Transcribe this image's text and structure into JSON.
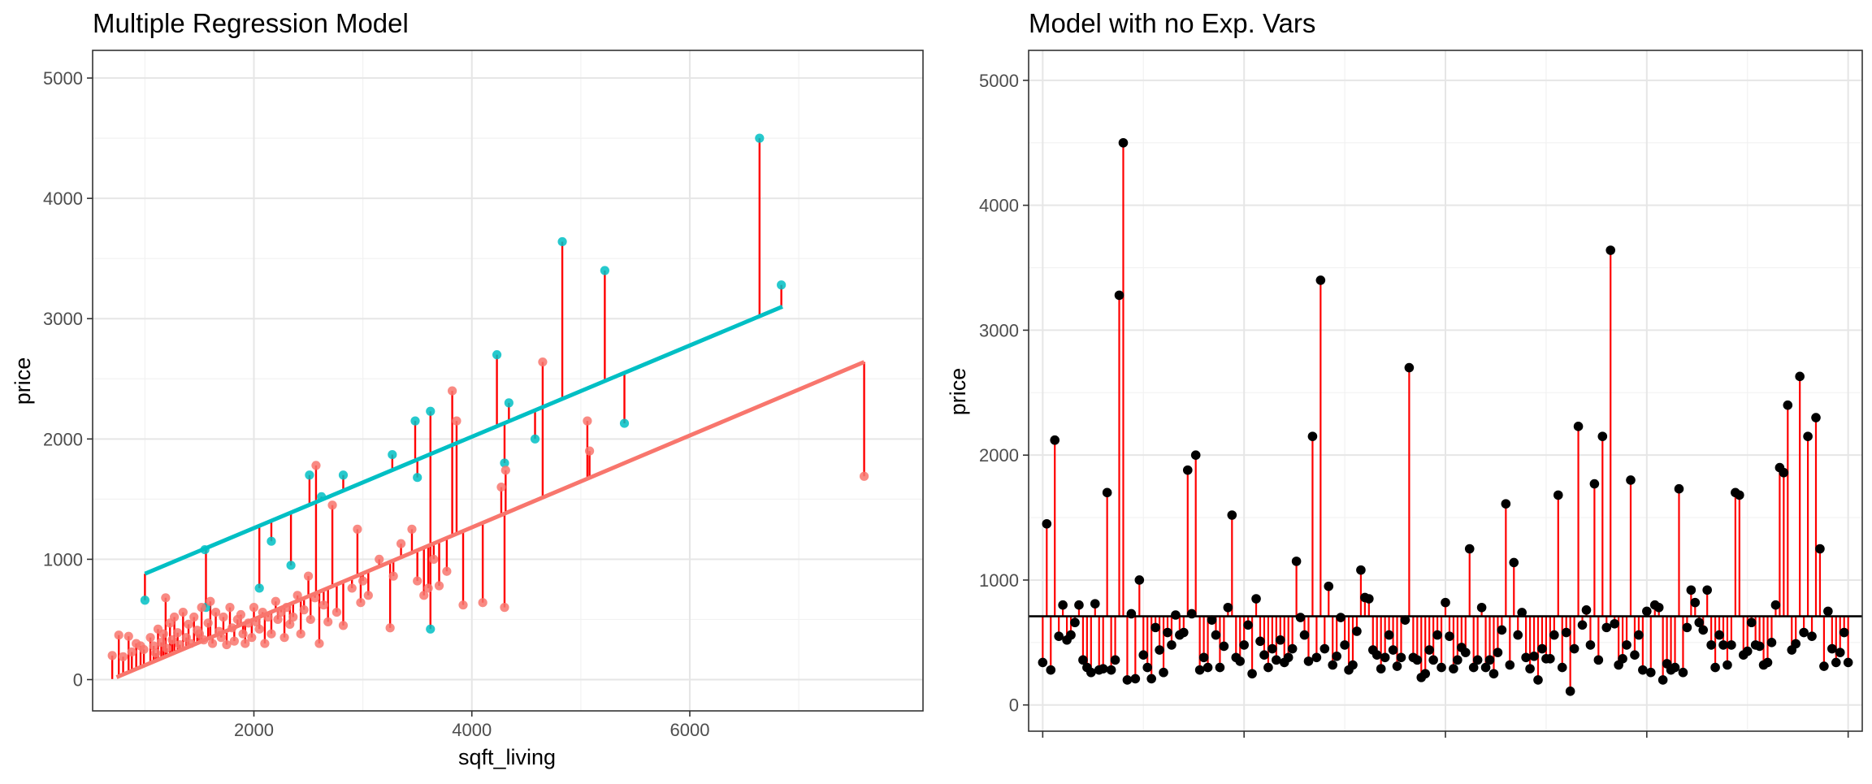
{
  "chart_data": [
    {
      "type": "scatter",
      "title": "Multiple Regression Model",
      "xlabel": "sqft_living",
      "ylabel": "price",
      "xlim": [
        520,
        8140
      ],
      "ylim": [
        -260,
        5230
      ],
      "x_ticks": [
        2000,
        4000,
        6000
      ],
      "x_tick_labels": [
        "2000",
        "4000",
        "6000"
      ],
      "y_ticks": [
        0,
        1000,
        2000,
        3000,
        4000,
        5000
      ],
      "y_tick_labels": [
        "0",
        "1000",
        "2000",
        "3000",
        "4000",
        "5000"
      ],
      "grid": true,
      "legend": "none",
      "colors": {
        "group_a": "#F8766D",
        "group_b": "#00BFC4",
        "residual": "#FF0000"
      },
      "fit_lines": [
        {
          "color": "#00BFC4",
          "x": [
            1000,
            6850
          ],
          "y": [
            880,
            3100
          ]
        },
        {
          "color": "#F8766D",
          "x": [
            740,
            7600
          ],
          "y": [
            20,
            2640
          ]
        }
      ],
      "groups": [
        {
          "color": "#00BFC4",
          "points": [
            [
              1000,
              660
            ],
            [
              1550,
              1080
            ],
            [
              1560,
              600
            ],
            [
              2050,
              760
            ],
            [
              2160,
              1150
            ],
            [
              2340,
              950
            ],
            [
              2510,
              1700
            ],
            [
              2620,
              1520
            ],
            [
              2820,
              1700
            ],
            [
              3270,
              1870
            ],
            [
              3480,
              2150
            ],
            [
              3500,
              1680
            ],
            [
              3620,
              2230
            ],
            [
              3620,
              420
            ],
            [
              4230,
              2700
            ],
            [
              4300,
              1800
            ],
            [
              4340,
              2300
            ],
            [
              4580,
              2000
            ],
            [
              4830,
              3640
            ],
            [
              5220,
              3400
            ],
            [
              5400,
              2130
            ],
            [
              6640,
              4500
            ],
            [
              6840,
              3280
            ]
          ]
        },
        {
          "color": "#F8766D",
          "points": [
            [
              700,
              200
            ],
            [
              760,
              370
            ],
            [
              800,
              190
            ],
            [
              850,
              360
            ],
            [
              880,
              230
            ],
            [
              920,
              300
            ],
            [
              960,
              280
            ],
            [
              990,
              250
            ],
            [
              1050,
              350
            ],
            [
              1080,
              280
            ],
            [
              1100,
              220
            ],
            [
              1120,
              420
            ],
            [
              1150,
              310
            ],
            [
              1170,
              380
            ],
            [
              1190,
              680
            ],
            [
              1200,
              260
            ],
            [
              1230,
              470
            ],
            [
              1250,
              330
            ],
            [
              1270,
              520
            ],
            [
              1300,
              390
            ],
            [
              1320,
              290
            ],
            [
              1350,
              560
            ],
            [
              1380,
              350
            ],
            [
              1400,
              460
            ],
            [
              1420,
              300
            ],
            [
              1450,
              520
            ],
            [
              1480,
              410
            ],
            [
              1500,
              380
            ],
            [
              1520,
              600
            ],
            [
              1540,
              330
            ],
            [
              1580,
              470
            ],
            [
              1600,
              650
            ],
            [
              1620,
              300
            ],
            [
              1650,
              560
            ],
            [
              1680,
              400
            ],
            [
              1700,
              350
            ],
            [
              1720,
              520
            ],
            [
              1750,
              290
            ],
            [
              1780,
              600
            ],
            [
              1800,
              430
            ],
            [
              1820,
              320
            ],
            [
              1850,
              500
            ],
            [
              1880,
              540
            ],
            [
              1900,
              380
            ],
            [
              1920,
              300
            ],
            [
              1950,
              470
            ],
            [
              1980,
              350
            ],
            [
              2000,
              600
            ],
            [
              2020,
              480
            ],
            [
              2050,
              420
            ],
            [
              2080,
              560
            ],
            [
              2100,
              300
            ],
            [
              2130,
              520
            ],
            [
              2160,
              380
            ],
            [
              2200,
              650
            ],
            [
              2220,
              500
            ],
            [
              2250,
              560
            ],
            [
              2280,
              350
            ],
            [
              2300,
              600
            ],
            [
              2330,
              460
            ],
            [
              2360,
              520
            ],
            [
              2400,
              700
            ],
            [
              2430,
              380
            ],
            [
              2460,
              580
            ],
            [
              2500,
              860
            ],
            [
              2520,
              500
            ],
            [
              2560,
              680
            ],
            [
              2570,
              1780
            ],
            [
              2600,
              300
            ],
            [
              2640,
              620
            ],
            [
              2680,
              480
            ],
            [
              2720,
              1450
            ],
            [
              2760,
              560
            ],
            [
              2820,
              450
            ],
            [
              2900,
              760
            ],
            [
              2950,
              1250
            ],
            [
              2980,
              640
            ],
            [
              3000,
              820
            ],
            [
              3050,
              700
            ],
            [
              3150,
              1000
            ],
            [
              3250,
              430
            ],
            [
              3280,
              860
            ],
            [
              3350,
              1130
            ],
            [
              3450,
              1250
            ],
            [
              3500,
              820
            ],
            [
              3560,
              700
            ],
            [
              3600,
              760
            ],
            [
              3650,
              1000
            ],
            [
              3700,
              780
            ],
            [
              3770,
              900
            ],
            [
              3820,
              2400
            ],
            [
              3860,
              2150
            ],
            [
              3920,
              620
            ],
            [
              4100,
              640
            ],
            [
              4270,
              1600
            ],
            [
              4300,
              600
            ],
            [
              4310,
              1740
            ],
            [
              4650,
              2640
            ],
            [
              5060,
              2150
            ],
            [
              5080,
              1900
            ],
            [
              7600,
              1690
            ]
          ]
        }
      ]
    },
    {
      "type": "scatter",
      "title": "Model with no Exp. Vars",
      "xlabel": "",
      "ylabel": "price",
      "ylim": [
        -210,
        5240
      ],
      "y_ticks": [
        0,
        1000,
        2000,
        3000,
        4000,
        5000
      ],
      "y_tick_labels": [
        "0",
        "1000",
        "2000",
        "3000",
        "4000",
        "5000"
      ],
      "x_tick_labels": [
        "",
        "",
        "",
        "",
        ""
      ],
      "mean_line": 710,
      "grid": true,
      "legend": "none",
      "colors": {
        "points": "#000000",
        "residual": "#FF0000",
        "mean": "#000000"
      },
      "values": [
        340,
        1450,
        280,
        2120,
        550,
        800,
        520,
        560,
        660,
        800,
        360,
        300,
        260,
        810,
        280,
        290,
        1700,
        280,
        360,
        3280,
        4500,
        200,
        730,
        210,
        1000,
        400,
        300,
        210,
        620,
        440,
        260,
        580,
        480,
        720,
        560,
        580,
        1880,
        730,
        2000,
        280,
        380,
        300,
        680,
        560,
        300,
        470,
        780,
        1520,
        380,
        350,
        480,
        640,
        250,
        850,
        510,
        400,
        300,
        450,
        360,
        520,
        340,
        380,
        450,
        1150,
        700,
        560,
        350,
        2150,
        380,
        3400,
        450,
        950,
        320,
        390,
        700,
        480,
        280,
        320,
        590,
        1080,
        860,
        850,
        440,
        400,
        290,
        380,
        560,
        440,
        310,
        380,
        680,
        2700,
        380,
        360,
        220,
        250,
        440,
        360,
        560,
        300,
        820,
        550,
        290,
        360,
        460,
        420,
        1250,
        300,
        360,
        780,
        300,
        360,
        250,
        420,
        600,
        1610,
        320,
        1140,
        560,
        740,
        380,
        290,
        390,
        200,
        450,
        370,
        370,
        560,
        1680,
        300,
        580,
        110,
        450,
        2230,
        640,
        760,
        480,
        1770,
        360,
        2150,
        620,
        3640,
        650,
        320,
        370,
        480,
        1800,
        400,
        560,
        280,
        750,
        260,
        800,
        780,
        200,
        330,
        280,
        300,
        1730,
        260,
        620,
        920,
        820,
        660,
        600,
        920,
        480,
        300,
        560,
        480,
        320,
        480,
        1700,
        1680,
        400,
        430,
        660,
        480,
        470,
        320,
        340,
        500,
        800,
        1900,
        1860,
        2400,
        440,
        490,
        2630,
        580,
        2150,
        550,
        2300,
        1250,
        310,
        750,
        450,
        340,
        420,
        580,
        340
      ]
    }
  ]
}
